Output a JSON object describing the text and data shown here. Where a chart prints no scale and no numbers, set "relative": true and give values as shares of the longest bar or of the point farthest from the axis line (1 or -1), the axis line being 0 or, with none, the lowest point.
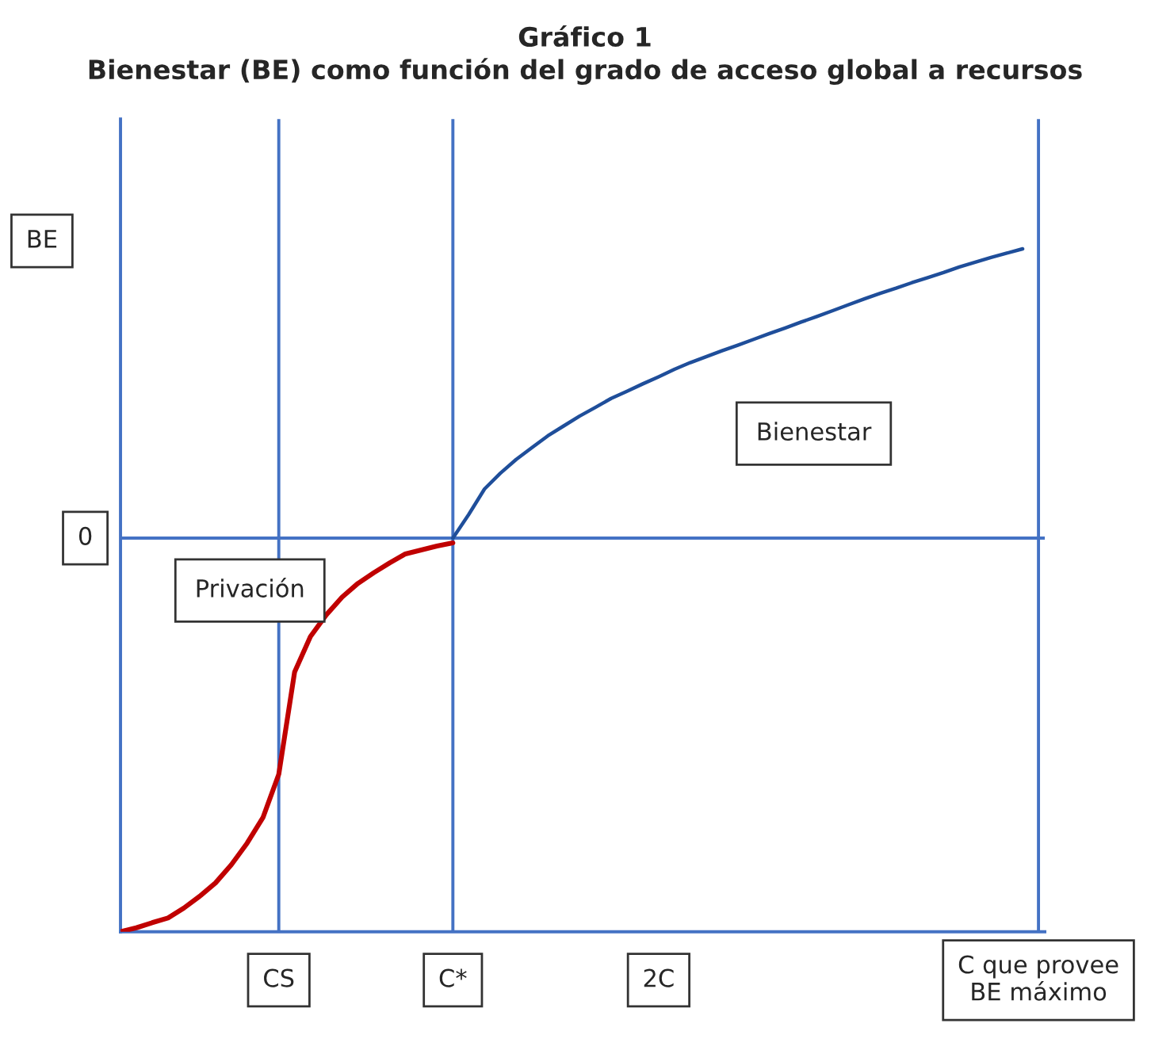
{
  "chart_data": {
    "type": "line",
    "title": "Gráfico 1",
    "subtitle": "Bienestar (BE) como función del grado de acceso global a recursos",
    "ylabel": "BE",
    "relative": true,
    "categories": [
      null,
      null,
      null,
      null,
      null,
      null,
      null,
      null,
      null,
      null,
      "CS",
      null,
      null,
      null,
      null,
      null,
      null,
      null,
      null,
      null,
      null,
      "C*",
      null,
      null,
      null,
      null,
      null,
      null,
      null,
      null,
      null,
      null,
      null,
      null,
      "2C",
      null,
      null,
      null,
      null,
      null,
      null,
      null,
      null,
      null,
      null,
      null,
      null,
      null,
      null,
      null,
      null,
      null,
      null,
      null,
      null,
      null,
      null,
      null,
      "C que provee\nBE máximo"
    ],
    "series": [
      {
        "color": "#c00000",
        "values": [
          -1,
          -0.99,
          -0.977,
          -0.965,
          -0.94,
          -0.91,
          -0.876,
          -0.83,
          -0.775,
          -0.71,
          -0.6,
          -0.34,
          -0.25,
          -0.195,
          -0.15,
          -0.115,
          -0.088,
          -0.063,
          -0.04,
          -0.03,
          -0.02,
          -0.012,
          null,
          null,
          null,
          null,
          null,
          null,
          null,
          null,
          null,
          null,
          null,
          null,
          null,
          null,
          null,
          null,
          null,
          null,
          null,
          null,
          null,
          null,
          null,
          null,
          null,
          null,
          null,
          null,
          null,
          null,
          null,
          null,
          null,
          null,
          null,
          null,
          null
        ]
      },
      {
        "color": "#1f4e9a",
        "values": [
          null,
          null,
          null,
          null,
          null,
          null,
          null,
          null,
          null,
          null,
          null,
          null,
          null,
          null,
          null,
          null,
          null,
          null,
          null,
          null,
          null,
          0,
          0.06,
          0.125,
          0.165,
          0.2,
          0.23,
          0.26,
          0.285,
          0.31,
          0.332,
          0.355,
          0.373,
          0.392,
          0.41,
          0.429,
          0.446,
          0.461,
          0.476,
          0.49,
          0.505,
          0.52,
          0.534,
          0.549,
          0.563,
          0.578,
          0.593,
          0.608,
          0.622,
          0.635,
          0.649,
          0.662,
          0.675,
          0.689,
          0.701,
          0.713,
          0.724,
          0.735,
          null
        ]
      }
    ],
    "ref_lines": [
      {
        "axis": "y",
        "value": 0,
        "label": "0",
        "color": "#4472c4"
      },
      {
        "axis": "x",
        "value": "CS",
        "color": "#4472c4"
      },
      {
        "axis": "x",
        "value": "C*",
        "color": "#4472c4"
      },
      {
        "axis": "x",
        "value": "C que provee\nBE máximo",
        "color": "#4472c4"
      }
    ],
    "annotations": [
      "Privación",
      "Bienestar"
    ],
    "grid": false,
    "marker": "none",
    "line_style": "solid"
  }
}
